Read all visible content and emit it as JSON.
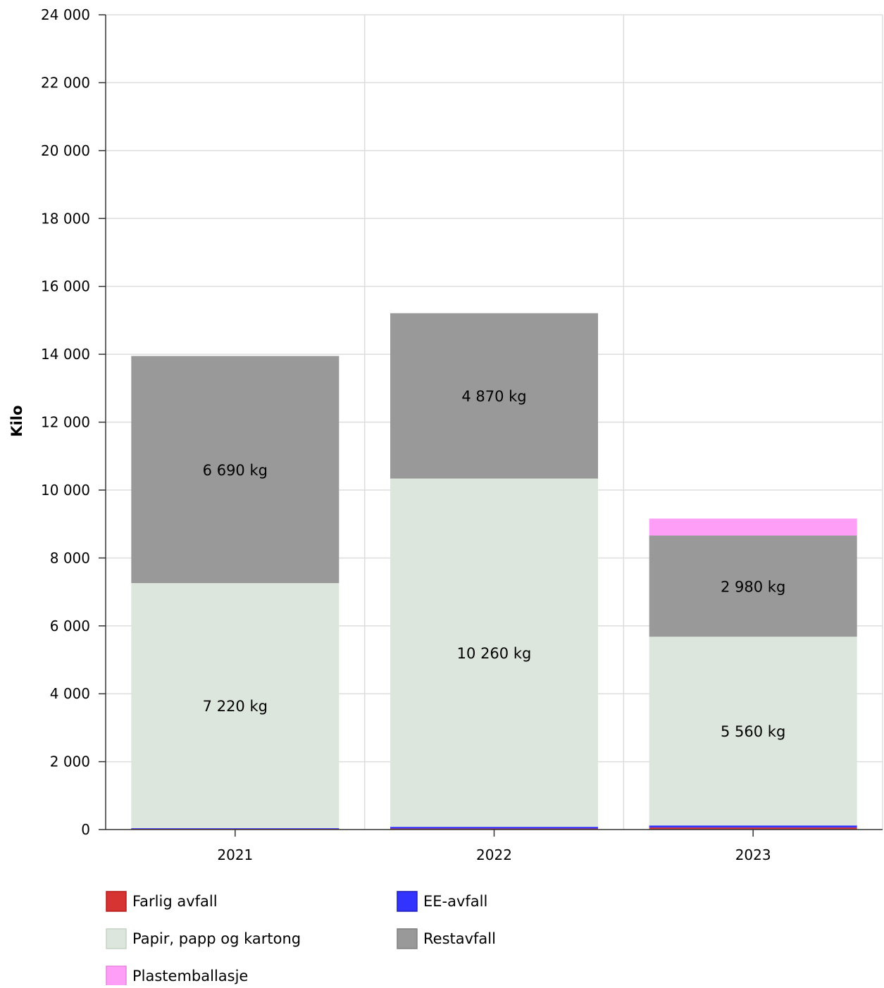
{
  "chart_data": {
    "type": "bar",
    "stacked": true,
    "categories": [
      "2021",
      "2022",
      "2023"
    ],
    "ylabel": "Kilo",
    "xlabel": "",
    "ylim": [
      0,
      24000
    ],
    "yticks": [
      0,
      2000,
      4000,
      6000,
      8000,
      10000,
      12000,
      14000,
      16000,
      18000,
      20000,
      22000,
      24000
    ],
    "ytick_labels": [
      "0",
      "2 000",
      "4 000",
      "6 000",
      "8 000",
      "10 000",
      "12 000",
      "14 000",
      "16 000",
      "18 000",
      "20 000",
      "22 000",
      "24 000"
    ],
    "grid": true,
    "legend_position": "bottom",
    "series": [
      {
        "name": "Farlig avfall",
        "color": "#d63333",
        "border": "#b51e1e",
        "values": [
          25,
          30,
          60
        ],
        "labels": [
          "",
          "",
          ""
        ]
      },
      {
        "name": "EE-avfall",
        "color": "#3333ff",
        "border": "#1e1eb5",
        "values": [
          15,
          50,
          60
        ],
        "labels": [
          "",
          "",
          ""
        ]
      },
      {
        "name": "Papir, papp og kartong",
        "color": "#dce6dc",
        "border": "#c5d3c5",
        "values": [
          7220,
          10260,
          5560
        ],
        "labels": [
          "7 220 kg",
          "10 260 kg",
          "5 560 kg"
        ]
      },
      {
        "name": "Restavfall",
        "color": "#999999",
        "border": "#808080",
        "values": [
          6690,
          4870,
          2980
        ],
        "labels": [
          "6 690 kg",
          "4 870 kg",
          "2 980 kg"
        ]
      },
      {
        "name": "Plastemballasje",
        "color": "#ff9ef7",
        "border": "#e685de",
        "values": [
          0,
          0,
          500
        ],
        "labels": [
          "",
          "",
          ""
        ]
      }
    ]
  }
}
